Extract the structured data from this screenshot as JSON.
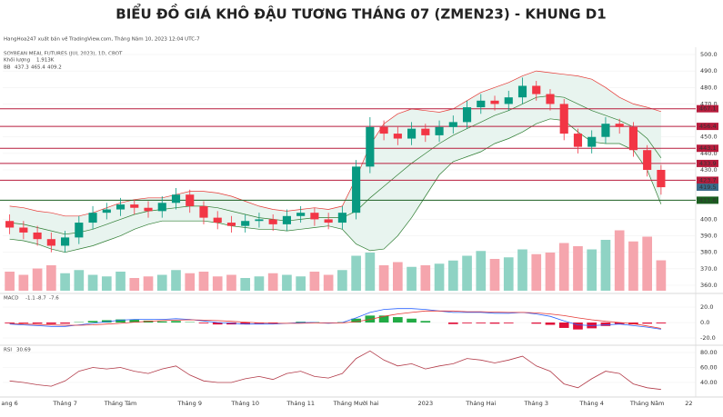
{
  "chart_data": {
    "type": "candlestick",
    "title": "BIỂU ĐỒ GIÁ KHÔ ĐẬU TƯƠNG THÁNG 07 (ZMEN23) - KHUNG D1",
    "publisher": "HangHoa247 xuất bản về TradingView.com, Tháng Năm 10, 2023 12:04 UTC-7",
    "symbol": "SOYBEAN MEAL FUTURES (JUL 2023), 1D, CBOT",
    "volume_name": "Khối lượng",
    "bb_name": "BB",
    "macd_name": "MACD",
    "rsi_name": "RSI",
    "categories": [
      "ang 6",
      null,
      null,
      null,
      "Tháng 7",
      null,
      null,
      null,
      "Tháng Tám",
      null,
      null,
      null,
      null,
      "Tháng 9",
      null,
      null,
      null,
      "Tháng 10",
      null,
      null,
      null,
      "Tháng 11",
      null,
      null,
      null,
      "Tháng Mười hai",
      null,
      null,
      null,
      null,
      "2023",
      null,
      null,
      null,
      "Tháng Hai",
      null,
      null,
      null,
      "Tháng 3",
      null,
      null,
      null,
      "Tháng 4",
      null,
      null,
      null,
      "Tháng Năm",
      null,
      null,
      "22"
    ],
    "open": [
      399,
      395,
      392,
      388,
      384,
      389,
      398,
      404,
      406,
      409,
      407,
      405,
      410,
      415,
      408,
      401,
      398,
      396,
      399,
      400,
      397,
      402,
      404,
      400,
      398,
      404,
      432,
      456,
      452,
      449,
      455,
      451,
      456,
      459,
      468,
      472,
      470,
      474,
      481,
      476,
      470,
      452,
      444,
      450,
      458,
      456,
      442,
      430,
      null,
      null
    ],
    "high": [
      403,
      399,
      396,
      392,
      393,
      402,
      408,
      410,
      413,
      412,
      411,
      414,
      419,
      418,
      411,
      405,
      402,
      403,
      404,
      403,
      406,
      408,
      407,
      404,
      408,
      436,
      462,
      460,
      456,
      459,
      458,
      460,
      463,
      472,
      476,
      475,
      478,
      486,
      484,
      479,
      473,
      455,
      454,
      462,
      461,
      459,
      445,
      433,
      null,
      null
    ],
    "low": [
      391,
      388,
      384,
      380,
      380,
      385,
      394,
      400,
      402,
      403,
      401,
      401,
      406,
      404,
      397,
      394,
      392,
      392,
      395,
      393,
      393,
      398,
      396,
      394,
      394,
      400,
      428,
      448,
      445,
      445,
      447,
      447,
      452,
      455,
      464,
      466,
      466,
      470,
      472,
      466,
      448,
      440,
      440,
      446,
      452,
      438,
      426,
      415,
      null,
      null
    ],
    "close": [
      395,
      392,
      388,
      384,
      389,
      398,
      404,
      406,
      409,
      407,
      405,
      410,
      415,
      408,
      401,
      398,
      396,
      399,
      400,
      397,
      402,
      404,
      400,
      398,
      404,
      432,
      456,
      452,
      449,
      455,
      451,
      456,
      459,
      468,
      472,
      470,
      474,
      481,
      476,
      470,
      452,
      444,
      450,
      458,
      456,
      442,
      430,
      419.5,
      null,
      null
    ],
    "up_color": "#089981",
    "down_color": "#f23645",
    "ylim": [
      360,
      500
    ],
    "yticks": [
      {
        "value": 360,
        "label": "360.0"
      },
      {
        "value": 370,
        "label": "370.0"
      },
      {
        "value": 380,
        "label": "380.0"
      },
      {
        "value": 390,
        "label": "390.0"
      },
      {
        "value": 400,
        "label": "400.0"
      },
      {
        "value": 430,
        "label": "430.0"
      },
      {
        "value": 440,
        "label": "440.0"
      },
      {
        "value": 450,
        "label": "450.0"
      },
      {
        "value": 470,
        "label": "470.0"
      },
      {
        "value": 480,
        "label": "480.0"
      },
      {
        "value": 490,
        "label": "490.0"
      },
      {
        "value": 500,
        "label": "500.0"
      }
    ],
    "bb": {
      "color": "#e53935",
      "basis_color": "#2e7d32",
      "fill": "#e8f4ef",
      "basis": [
        398,
        397,
        395,
        393,
        391,
        392,
        394,
        397,
        400,
        403,
        405,
        406,
        407,
        408,
        408,
        407,
        405,
        403,
        401,
        400,
        399,
        400,
        401,
        401,
        401,
        405,
        413,
        420,
        427,
        434,
        440,
        446,
        451,
        455,
        459,
        463,
        466,
        470,
        474,
        475,
        474,
        470,
        466,
        463,
        460,
        456,
        449,
        437.3,
        null,
        null
      ],
      "upper": [
        408,
        407,
        405,
        404,
        402,
        402,
        404,
        407,
        410,
        412,
        413,
        413,
        415,
        417,
        417,
        416,
        414,
        411,
        408,
        406,
        405,
        406,
        407,
        406,
        408,
        425,
        445,
        458,
        464,
        467,
        466,
        465,
        467,
        472,
        477,
        480,
        483,
        487,
        490,
        489,
        488,
        487,
        485,
        480,
        474,
        470,
        468,
        465.4,
        null,
        null
      ],
      "lower": [
        388,
        387,
        385,
        382,
        380,
        382,
        384,
        387,
        390,
        394,
        397,
        399,
        399,
        399,
        399,
        398,
        396,
        395,
        394,
        394,
        393,
        394,
        395,
        396,
        394,
        385,
        381,
        382,
        390,
        401,
        414,
        427,
        435,
        438,
        441,
        446,
        449,
        453,
        458,
        461,
        460,
        453,
        447,
        446,
        446,
        442,
        430,
        409.2,
        null,
        null
      ]
    },
    "levels": [
      {
        "value": 467.1,
        "color": "#b71c3c"
      },
      {
        "value": 456.4,
        "color": "#b71c3c"
      },
      {
        "value": 443.1,
        "color": "#b71c3c"
      },
      {
        "value": 433.9,
        "color": "#b71c3c"
      },
      {
        "value": 423.7,
        "color": "#b71c3c"
      },
      {
        "value": 411.6,
        "color": "#1b5e20"
      }
    ],
    "last_price_color": "#3a6b8a",
    "volume": {
      "values": [
        1.2,
        1.0,
        1.4,
        1.6,
        1.1,
        1.3,
        1.0,
        0.9,
        1.2,
        0.8,
        0.9,
        1.0,
        1.3,
        1.1,
        1.2,
        0.9,
        1.0,
        0.8,
        0.9,
        1.1,
        1.0,
        0.9,
        1.2,
        1.0,
        1.3,
        2.2,
        2.4,
        1.6,
        1.8,
        1.5,
        1.6,
        1.7,
        1.9,
        2.2,
        2.5,
        2.0,
        2.1,
        2.6,
        2.3,
        2.4,
        3.0,
        2.8,
        2.6,
        3.2,
        3.8,
        3.1,
        3.4,
        1.913,
        null,
        null
      ],
      "last_label": "1.913K",
      "ymax": 4,
      "up_color": "#8fd3c4",
      "down_color": "#f5a5ad"
    },
    "macd": {
      "ylim": [
        -30,
        30
      ],
      "yticks": [
        {
          "value": 20,
          "label": "20.0"
        },
        {
          "value": 0,
          "label": "0.0"
        },
        {
          "value": -20,
          "label": "-20.0"
        }
      ],
      "histogram": [
        -1,
        -1,
        -1.5,
        -2,
        -1.5,
        0.5,
        2,
        3,
        4,
        3.5,
        2.5,
        1.5,
        2,
        0.5,
        -1,
        -2.5,
        -2.5,
        -2.5,
        -1.5,
        -1,
        0,
        1,
        0.5,
        -0.5,
        0.5,
        5,
        9,
        9,
        7,
        5,
        2,
        0,
        -2,
        -1,
        -1,
        -1.5,
        -1,
        0,
        -1.5,
        -3,
        -7,
        -9,
        -7.5,
        -4.5,
        -2,
        -2.5,
        -1.5,
        -1.1,
        null,
        null
      ],
      "macd": [
        -2,
        -3,
        -4,
        -5,
        -5,
        -3,
        -1,
        1,
        3,
        4,
        4,
        4,
        5,
        4,
        2,
        0,
        -1,
        -2,
        -2,
        -2,
        -1,
        0,
        0,
        -1,
        0,
        6,
        13,
        17,
        18,
        18,
        17,
        15,
        13,
        13,
        13,
        12,
        12,
        13,
        11,
        8,
        2,
        -3,
        -4,
        -3,
        -2,
        -4,
        -6,
        -8.7,
        null,
        null
      ],
      "signal": [
        -1,
        -2,
        -2.5,
        -3,
        -3.5,
        -3.5,
        -3,
        -2,
        -1,
        0.5,
        1.5,
        2.5,
        3,
        3.5,
        3,
        2.5,
        1.5,
        0.5,
        -0.5,
        -1,
        -1,
        -1,
        -0.5,
        -0.5,
        -0.5,
        1,
        4,
        8,
        11,
        13,
        15,
        15,
        15,
        14,
        14,
        13.5,
        13,
        13,
        12.5,
        11,
        9,
        6,
        3.5,
        1.5,
        0,
        -1.5,
        -4.5,
        -7.6,
        null,
        null
      ],
      "pos_color": "#22ab45",
      "neg_color": "#e0103a",
      "macd_color": "#2962ff",
      "signal_color": "#e53935"
    },
    "rsi": {
      "ylim": [
        20,
        88
      ],
      "yticks": [
        {
          "value": 80,
          "label": "80.00"
        },
        {
          "value": 60,
          "label": "60.00"
        },
        {
          "value": 40,
          "label": "40.00"
        }
      ],
      "color": "#b23a48",
      "values": [
        42,
        40,
        37,
        35,
        42,
        55,
        60,
        58,
        60,
        55,
        52,
        58,
        62,
        50,
        42,
        40,
        40,
        45,
        48,
        44,
        52,
        55,
        48,
        46,
        52,
        72,
        82,
        70,
        62,
        65,
        58,
        62,
        65,
        72,
        70,
        66,
        70,
        75,
        62,
        55,
        38,
        33,
        45,
        55,
        52,
        38,
        33,
        30.69,
        null,
        null
      ]
    }
  }
}
